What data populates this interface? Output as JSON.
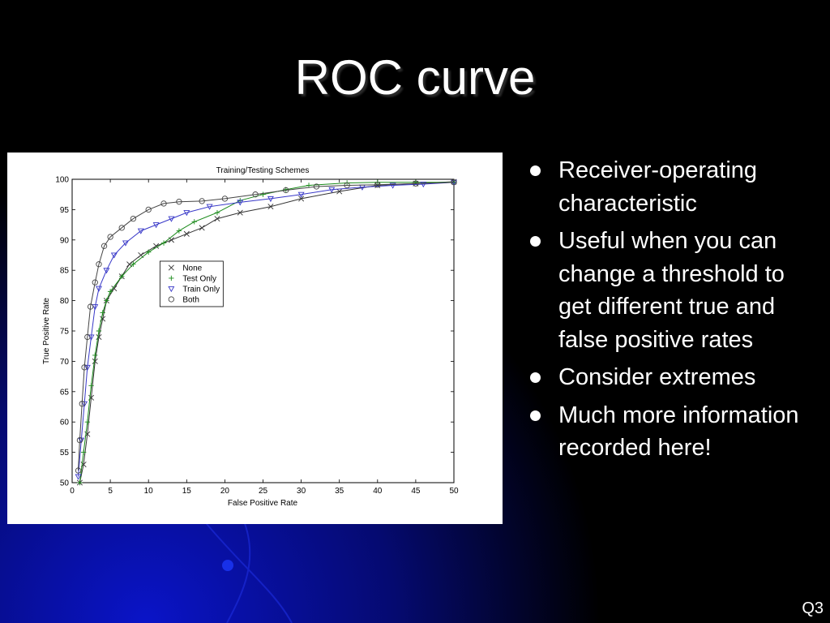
{
  "slide": {
    "title": "ROC curve",
    "number": "Q3",
    "bullets": [
      "Receiver-operating characteristic",
      "Useful when you can change a threshold to get different true and false positive rates",
      "Consider extremes",
      "Much more information recorded here!"
    ],
    "colors": {
      "background": "#000000",
      "glow": "#0a14c8",
      "text": "#ffffff"
    }
  },
  "chart_data": {
    "type": "line",
    "title": "Training/Testing Schemes",
    "xlabel": "False Positive Rate",
    "ylabel": "True Positive Rate",
    "xlim": [
      0,
      50
    ],
    "ylim": [
      50,
      100
    ],
    "xticks": [
      0,
      5,
      10,
      15,
      20,
      25,
      30,
      35,
      40,
      45,
      50
    ],
    "yticks": [
      50,
      55,
      60,
      65,
      70,
      75,
      80,
      85,
      90,
      95,
      100
    ],
    "legend_position": "center-left",
    "series": [
      {
        "name": "None",
        "marker": "x",
        "color": "#333333",
        "points": [
          [
            1,
            50
          ],
          [
            1.5,
            53
          ],
          [
            2,
            58
          ],
          [
            2.5,
            64
          ],
          [
            3,
            70
          ],
          [
            3.5,
            74
          ],
          [
            4,
            77
          ],
          [
            4.5,
            80
          ],
          [
            5.5,
            82
          ],
          [
            6.5,
            84
          ],
          [
            7.5,
            86
          ],
          [
            9,
            87.5
          ],
          [
            11,
            89
          ],
          [
            13,
            90
          ],
          [
            15,
            91
          ],
          [
            17,
            92
          ],
          [
            19,
            93.5
          ],
          [
            22,
            94.5
          ],
          [
            26,
            95.5
          ],
          [
            30,
            96.8
          ],
          [
            35,
            98
          ],
          [
            40,
            99
          ],
          [
            45,
            99.3
          ],
          [
            50,
            99.6
          ]
        ]
      },
      {
        "name": "Test Only",
        "marker": "+",
        "color": "#1a8a1a",
        "points": [
          [
            1,
            50
          ],
          [
            1.5,
            55
          ],
          [
            2,
            60
          ],
          [
            2.5,
            66
          ],
          [
            3,
            71
          ],
          [
            3.5,
            75
          ],
          [
            4,
            78
          ],
          [
            4.5,
            80
          ],
          [
            5,
            81.5
          ],
          [
            6.5,
            84
          ],
          [
            8,
            86
          ],
          [
            10,
            88
          ],
          [
            12,
            89.5
          ],
          [
            14,
            91.5
          ],
          [
            16,
            93
          ],
          [
            19,
            94.5
          ],
          [
            22,
            96.5
          ],
          [
            25,
            97.5
          ],
          [
            28,
            98.3
          ],
          [
            31,
            99
          ],
          [
            36,
            99.4
          ],
          [
            40,
            99.5
          ],
          [
            45,
            99.5
          ],
          [
            50,
            99.5
          ]
        ]
      },
      {
        "name": "Train Only",
        "marker": "v",
        "color": "#3838c8",
        "points": [
          [
            0.8,
            51
          ],
          [
            1.2,
            57
          ],
          [
            1.6,
            63
          ],
          [
            2,
            69
          ],
          [
            2.5,
            74
          ],
          [
            3,
            79
          ],
          [
            3.5,
            82
          ],
          [
            4.5,
            85
          ],
          [
            5.5,
            87.5
          ],
          [
            7,
            89.5
          ],
          [
            9,
            91.5
          ],
          [
            11,
            92.5
          ],
          [
            13,
            93.5
          ],
          [
            15,
            94.5
          ],
          [
            18,
            95.5
          ],
          [
            22,
            96.2
          ],
          [
            26,
            96.8
          ],
          [
            30,
            97.5
          ],
          [
            34,
            98.3
          ],
          [
            38,
            98.7
          ],
          [
            42,
            99
          ],
          [
            46,
            99.2
          ],
          [
            50,
            99.5
          ]
        ]
      },
      {
        "name": "Both",
        "marker": "o",
        "color": "#444444",
        "points": [
          [
            0.8,
            52
          ],
          [
            1,
            57
          ],
          [
            1.3,
            63
          ],
          [
            1.6,
            69
          ],
          [
            2,
            74
          ],
          [
            2.4,
            79
          ],
          [
            3,
            83
          ],
          [
            3.5,
            86
          ],
          [
            4.2,
            89
          ],
          [
            5,
            90.5
          ],
          [
            6.5,
            92
          ],
          [
            8,
            93.5
          ],
          [
            10,
            95
          ],
          [
            12,
            96
          ],
          [
            14,
            96.3
          ],
          [
            17,
            96.4
          ],
          [
            20,
            96.8
          ],
          [
            24,
            97.5
          ],
          [
            28,
            98.2
          ],
          [
            32,
            98.8
          ],
          [
            36,
            99
          ],
          [
            40,
            99.1
          ],
          [
            45,
            99.3
          ],
          [
            50,
            99.5
          ]
        ]
      }
    ]
  }
}
